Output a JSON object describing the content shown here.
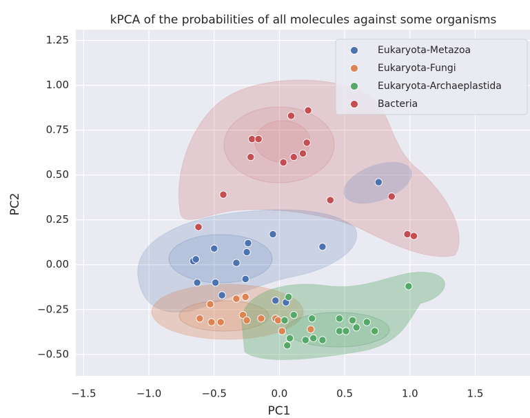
{
  "chart_data": {
    "type": "scatter",
    "title": "kPCA of the probabilities of all molecules against some organisms",
    "x_label": "PC1",
    "y_label": "PC2",
    "xlim": [
      -1.56,
      1.92
    ],
    "ylim": [
      -0.62,
      1.31
    ],
    "xticks": [
      {
        "value": -1.5,
        "label": "−1.5"
      },
      {
        "value": -1.0,
        "label": "−1.0"
      },
      {
        "value": -0.5,
        "label": "−0.5"
      },
      {
        "value": 0.0,
        "label": "0.0"
      },
      {
        "value": 0.5,
        "label": "0.5"
      },
      {
        "value": 1.0,
        "label": "1.0"
      },
      {
        "value": 1.5,
        "label": "1.5"
      }
    ],
    "yticks": [
      {
        "value": -0.5,
        "label": "−0.50"
      },
      {
        "value": -0.25,
        "label": "−0.25"
      },
      {
        "value": 0.0,
        "label": "0.00"
      },
      {
        "value": 0.25,
        "label": "0.25"
      },
      {
        "value": 0.5,
        "label": "0.50"
      },
      {
        "value": 0.75,
        "label": "0.75"
      },
      {
        "value": 1.0,
        "label": "1.00"
      },
      {
        "value": 1.25,
        "label": "1.25"
      }
    ],
    "grid": true,
    "legend": "upper right",
    "series": [
      {
        "name": "Eukaryota-Metazoa",
        "color": "#4c72b0",
        "x": [
          -0.66,
          -0.64,
          -0.5,
          -0.24,
          -0.25,
          -0.33,
          -0.63,
          -0.49,
          -0.44,
          -0.26,
          -0.05,
          0.33,
          -0.03,
          0.05,
          0.76
        ],
        "y": [
          0.02,
          0.03,
          0.09,
          0.12,
          0.07,
          0.01,
          -0.1,
          -0.1,
          -0.17,
          -0.08,
          0.17,
          0.1,
          -0.2,
          -0.21,
          0.46
        ]
      },
      {
        "name": "Eukaryota-Fungi",
        "color": "#dd8452",
        "x": [
          -0.61,
          -0.52,
          -0.53,
          -0.45,
          -0.33,
          -0.26,
          -0.28,
          -0.25,
          -0.14,
          -0.03,
          -0.01,
          0.02,
          0.24
        ],
        "y": [
          -0.3,
          -0.32,
          -0.22,
          -0.32,
          -0.19,
          -0.18,
          -0.28,
          -0.31,
          -0.3,
          -0.3,
          -0.31,
          -0.37,
          -0.36
        ]
      },
      {
        "name": "Eukaryota-Archaeplastida",
        "color": "#55a868",
        "x": [
          0.07,
          0.11,
          0.04,
          0.06,
          0.08,
          0.2,
          0.26,
          0.33,
          0.25,
          0.46,
          0.46,
          0.51,
          0.56,
          0.59,
          0.67,
          0.73,
          0.99
        ],
        "y": [
          -0.18,
          -0.28,
          -0.31,
          -0.45,
          -0.41,
          -0.42,
          -0.41,
          -0.42,
          -0.3,
          -0.3,
          -0.37,
          -0.37,
          -0.31,
          -0.35,
          -0.32,
          -0.37,
          -0.12
        ]
      },
      {
        "name": "Bacteria",
        "color": "#c44e52",
        "x": [
          -0.62,
          -0.43,
          -0.22,
          -0.21,
          -0.16,
          0.03,
          0.09,
          0.22,
          0.11,
          0.18,
          0.21,
          0.39,
          0.86,
          0.98,
          1.03
        ],
        "y": [
          0.21,
          0.39,
          0.6,
          0.7,
          0.7,
          0.57,
          0.83,
          0.86,
          0.6,
          0.62,
          0.68,
          0.36,
          0.38,
          0.17,
          0.16
        ]
      }
    ]
  }
}
